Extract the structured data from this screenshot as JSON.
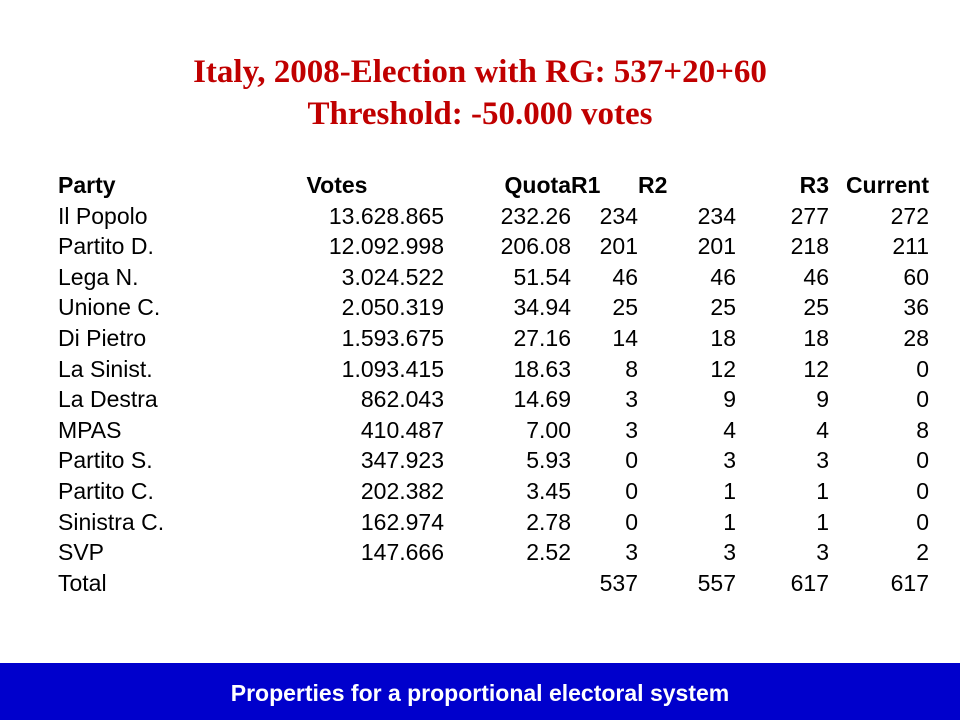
{
  "title": {
    "line1": "Italy, 2008-Election with RG: 537+20+60",
    "line2": "Threshold: -50.000 votes"
  },
  "table": {
    "headers": [
      "Party",
      "Votes",
      "Quota",
      "R1",
      "R2",
      "R3",
      "Current"
    ],
    "rows": [
      [
        "Il Popolo",
        "13.628.865",
        "232.26",
        "234",
        "234",
        "277",
        "272"
      ],
      [
        "Partito D.",
        "12.092.998",
        "206.08",
        "201",
        "201",
        "218",
        "211"
      ],
      [
        "Lega N.",
        "3.024.522",
        "51.54",
        "46",
        "46",
        "46",
        "60"
      ],
      [
        "Unione C.",
        "2.050.319",
        "34.94",
        "25",
        "25",
        "25",
        "36"
      ],
      [
        "Di Pietro",
        "1.593.675",
        "27.16",
        "14",
        "18",
        "18",
        "28"
      ],
      [
        "La Sinist.",
        "1.093.415",
        "18.63",
        "8",
        "12",
        "12",
        "0"
      ],
      [
        "La Destra",
        "862.043",
        "14.69",
        "3",
        "9",
        "9",
        "0"
      ],
      [
        "MPAS",
        "410.487",
        "7.00",
        "3",
        "4",
        "4",
        "8"
      ],
      [
        "Partito S.",
        "347.923",
        "5.93",
        "0",
        "3",
        "3",
        "0"
      ],
      [
        "Partito C.",
        "202.382",
        "3.45",
        "0",
        "1",
        "1",
        "0"
      ],
      [
        "Sinistra C.",
        "162.974",
        "2.78",
        "0",
        "1",
        "1",
        "0"
      ],
      [
        "SVP",
        "147.666",
        "2.52",
        "3",
        "3",
        "3",
        "2"
      ]
    ],
    "total": {
      "label": "Total",
      "r1": "537",
      "r2": "557",
      "r3": "617",
      "current": "617"
    }
  },
  "footer": {
    "text": "Properties for a proportional electoral system"
  },
  "colors": {
    "title": "#c00000",
    "footer_bg": "#0000cc",
    "footer_text": "#ffffff"
  }
}
